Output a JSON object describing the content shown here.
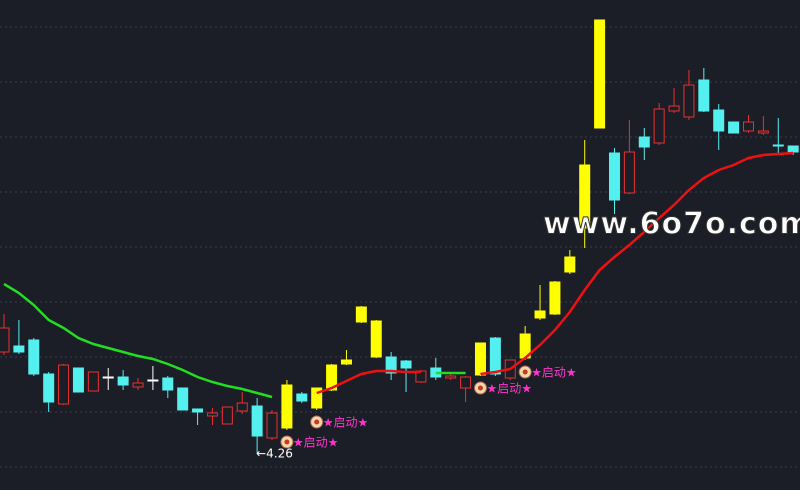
{
  "chart_data": {
    "type": "candlestick",
    "ylim": [
      4.075,
      6.525
    ],
    "grid": true,
    "hollow_color": "#e8312f",
    "open": [
      4.765,
      4.795,
      4.825,
      4.655,
      4.505,
      4.685,
      4.57,
      4.64,
      4.64,
      4.59,
      4.625,
      4.635,
      4.585,
      4.48,
      4.445,
      4.405,
      4.47,
      4.495,
      4.335,
      4.385,
      4.555,
      4.485,
      4.575,
      4.705,
      4.915,
      4.74,
      4.74,
      4.72,
      4.615,
      4.685,
      4.635,
      4.585,
      4.65,
      4.835,
      4.635,
      4.735,
      4.935,
      4.955,
      5.165,
      5.385,
      5.885,
      5.76,
      5.56,
      5.84,
      5.81,
      5.97,
      5.94,
      6.125,
      5.975,
      5.915,
      5.87,
      5.86,
      5.8,
      5.795
    ],
    "high": [
      4.955,
      4.925,
      4.835,
      4.665,
      4.705,
      4.685,
      4.665,
      4.685,
      4.675,
      4.635,
      4.695,
      4.645,
      4.585,
      4.48,
      4.485,
      4.49,
      4.565,
      4.535,
      4.475,
      4.625,
      4.565,
      4.585,
      4.705,
      4.775,
      4.995,
      4.925,
      4.765,
      4.725,
      4.675,
      4.735,
      4.655,
      4.645,
      4.81,
      4.84,
      4.725,
      4.895,
      5.1,
      5.12,
      5.275,
      5.825,
      6.425,
      5.785,
      5.925,
      5.885,
      6.01,
      6.085,
      6.175,
      6.185,
      6.005,
      5.915,
      5.95,
      5.945,
      5.935,
      5.795
    ],
    "low": [
      4.75,
      4.755,
      4.645,
      4.465,
      4.5,
      4.565,
      4.57,
      4.575,
      4.575,
      4.575,
      4.575,
      4.535,
      4.475,
      4.4,
      4.4,
      4.405,
      4.455,
      4.26,
      4.325,
      4.375,
      4.51,
      4.475,
      4.57,
      4.7,
      4.91,
      4.735,
      4.625,
      4.565,
      4.61,
      4.625,
      4.625,
      4.515,
      4.645,
      4.645,
      4.625,
      4.725,
      4.925,
      4.95,
      5.155,
      5.285,
      5.885,
      5.455,
      5.555,
      5.725,
      5.8,
      5.96,
      5.925,
      5.965,
      5.775,
      5.86,
      5.86,
      5.85,
      5.75,
      5.75
    ],
    "close": [
      4.885,
      4.765,
      4.655,
      4.515,
      4.7,
      4.565,
      4.665,
      4.64,
      4.6,
      4.61,
      4.625,
      4.575,
      4.475,
      4.465,
      4.46,
      4.49,
      4.51,
      4.345,
      4.46,
      4.6,
      4.52,
      4.585,
      4.7,
      4.725,
      4.99,
      4.92,
      4.66,
      4.685,
      4.67,
      4.64,
      4.645,
      4.64,
      4.81,
      4.655,
      4.725,
      4.855,
      4.97,
      5.115,
      5.24,
      5.7,
      6.425,
      5.525,
      5.765,
      5.79,
      5.98,
      5.995,
      6.1,
      5.97,
      5.87,
      5.86,
      5.915,
      5.87,
      5.795,
      5.765
    ],
    "colors": [
      "#e8312f",
      "#54f0f0",
      "#54f0f0",
      "#54f0f0",
      "#e8312f",
      "#54f0f0",
      "#e8312f",
      "#ffffff",
      "#54f0f0",
      "#e8312f",
      "#ffffff",
      "#54f0f0",
      "#54f0f0",
      "#54f0f0",
      "#e8312f",
      "#e8312f",
      "#e8312f",
      "#54f0f0",
      "#e8312f",
      "#ffff00",
      "#54f0f0",
      "#ffff00",
      "#ffff00",
      "#ffff00",
      "#ffff00",
      "#ffff00",
      "#54f0f0",
      "#54f0f0",
      "#e8312f",
      "#54f0f0",
      "#e8312f",
      "#e8312f",
      "#ffff00",
      "#54f0f0",
      "#e8312f",
      "#ffff00",
      "#ffff00",
      "#ffff00",
      "#ffff00",
      "#ffff00",
      "#ffff00",
      "#54f0f0",
      "#e8312f",
      "#54f0f0",
      "#e8312f",
      "#e8312f",
      "#e8312f",
      "#54f0f0",
      "#54f0f0",
      "#54f0f0",
      "#e8312f",
      "#e8312f",
      "#54f0f0",
      "#54f0f0"
    ],
    "lines": [
      {
        "color": "#22dd22",
        "values": [
          5.105,
          5.06,
          5.0,
          4.925,
          4.885,
          4.835,
          4.805,
          4.785,
          4.765,
          4.745,
          4.73,
          4.705,
          4.675,
          4.64,
          4.615,
          4.595,
          4.58,
          4.56,
          4.54,
          null,
          null,
          null,
          null,
          null,
          null,
          null,
          null,
          null,
          null,
          4.66,
          4.66,
          4.66,
          null,
          null,
          null,
          null,
          null,
          null,
          null,
          null,
          null,
          null,
          null,
          null,
          null,
          null,
          null,
          null,
          null,
          null,
          null,
          null,
          null,
          null
        ]
      },
      {
        "color": "#ee1111",
        "values": [
          null,
          null,
          null,
          null,
          null,
          null,
          null,
          null,
          null,
          null,
          null,
          null,
          null,
          null,
          null,
          null,
          null,
          null,
          null,
          null,
          null,
          4.56,
          4.585,
          4.62,
          4.655,
          4.67,
          4.67,
          4.665,
          4.665,
          null,
          null,
          null,
          4.655,
          4.665,
          4.68,
          4.735,
          4.8,
          4.875,
          4.965,
          5.075,
          5.175,
          5.24,
          5.3,
          5.365,
          5.435,
          5.5,
          5.575,
          5.635,
          5.675,
          5.7,
          5.735,
          5.75,
          5.755,
          5.76
        ]
      }
    ],
    "annotations": [
      {
        "text": "★启动★",
        "x": 19
      },
      {
        "text": "★启动★",
        "x": 21
      },
      {
        "text": "★启动★",
        "x": 32
      },
      {
        "text": "★启动★",
        "x": 35
      }
    ],
    "low_marker": {
      "x": 17,
      "label": "←4.26"
    },
    "watermark": "www.6o7o.com"
  }
}
